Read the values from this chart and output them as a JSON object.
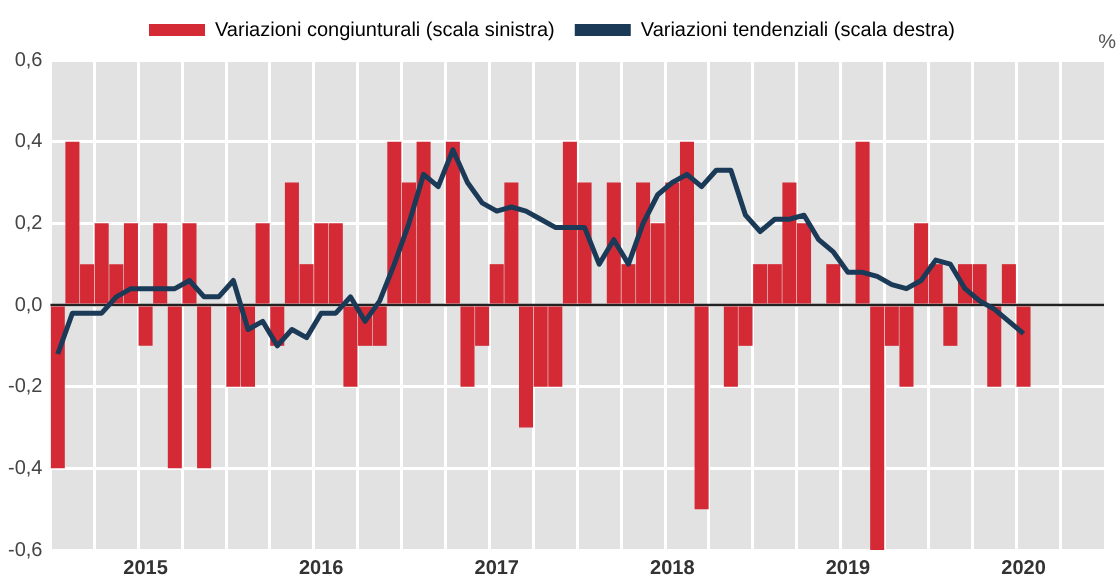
{
  "chart_data": {
    "type": "bar",
    "categories": [
      null,
      null,
      null,
      null,
      null,
      null,
      "2015",
      null,
      null,
      null,
      null,
      null,
      null,
      null,
      null,
      null,
      null,
      null,
      "2016",
      null,
      null,
      null,
      null,
      null,
      null,
      null,
      null,
      null,
      null,
      null,
      "2017",
      null,
      null,
      null,
      null,
      null,
      null,
      null,
      null,
      null,
      null,
      null,
      "2018",
      null,
      null,
      null,
      null,
      null,
      null,
      null,
      null,
      null,
      null,
      null,
      "2019",
      null,
      null,
      null,
      null,
      null,
      null,
      null,
      null,
      null,
      null,
      null,
      "2020",
      null,
      null,
      null,
      null,
      null
    ],
    "series": [
      {
        "name": "Variazioni congiunturali (scala sinistra)",
        "color": "#d42a35",
        "values": [
          -0.4,
          0.4,
          0.1,
          0.2,
          0.1,
          0.2,
          -0.1,
          0.2,
          -0.4,
          0.2,
          -0.4,
          0,
          -0.2,
          -0.2,
          0.2,
          -0.1,
          0.3,
          0.1,
          0.2,
          0.2,
          -0.2,
          -0.1,
          -0.1,
          0.4,
          0.3,
          0.4,
          0,
          0.4,
          -0.2,
          -0.1,
          0.1,
          0.3,
          -0.3,
          -0.2,
          -0.2,
          0.4,
          0.3,
          0,
          0.3,
          0.1,
          0.3,
          0.2,
          0.3,
          0.4,
          -0.5,
          0,
          -0.2,
          -0.1,
          0.1,
          0.1,
          0.3,
          0.2,
          0,
          0.1,
          0,
          0.4,
          -0.6,
          -0.1,
          -0.2,
          0.2,
          0.1,
          -0.1,
          0.1,
          0.1,
          -0.2,
          0.1,
          -0.2,
          null,
          null,
          null,
          null,
          null
        ]
      },
      {
        "name": "Variazioni tendenziali (scala destra)",
        "type": "line",
        "color": "#1b3a57",
        "values": [
          -0.12,
          -0.02,
          -0.02,
          -0.02,
          0.02,
          0.04,
          0.04,
          0.04,
          0.04,
          0.06,
          0.02,
          0.02,
          0.06,
          -0.06,
          -0.04,
          -0.1,
          -0.06,
          -0.08,
          -0.02,
          -0.02,
          0.02,
          -0.04,
          0.01,
          0.1,
          0.2,
          0.32,
          0.29,
          0.38,
          0.3,
          0.25,
          0.23,
          0.24,
          0.23,
          0.21,
          0.19,
          0.19,
          0.19,
          0.1,
          0.16,
          0.1,
          0.2,
          0.27,
          0.3,
          0.32,
          0.29,
          0.33,
          0.33,
          0.22,
          0.18,
          0.21,
          0.21,
          0.22,
          0.16,
          0.13,
          0.08,
          0.08,
          0.07,
          0.05,
          0.04,
          0.06,
          0.11,
          0.1,
          0.04,
          0.01,
          -0.01,
          -0.04,
          -0.07,
          null,
          null,
          null,
          null,
          null
        ]
      }
    ],
    "ylim": [
      -0.6,
      0.6
    ],
    "yticks": [
      {
        "value": -0.6,
        "label": "-0,6"
      },
      {
        "value": -0.4,
        "label": "-0,4"
      },
      {
        "value": -0.2,
        "label": "-0,2"
      },
      {
        "value": 0,
        "label": "0,0"
      },
      {
        "value": 0.2,
        "label": "0,2"
      },
      {
        "value": 0.4,
        "label": "0,4"
      },
      {
        "value": 0.6,
        "label": "0,6"
      }
    ],
    "grid": true,
    "legend": "top",
    "marker": "none",
    "annotations": [
      "%"
    ]
  }
}
